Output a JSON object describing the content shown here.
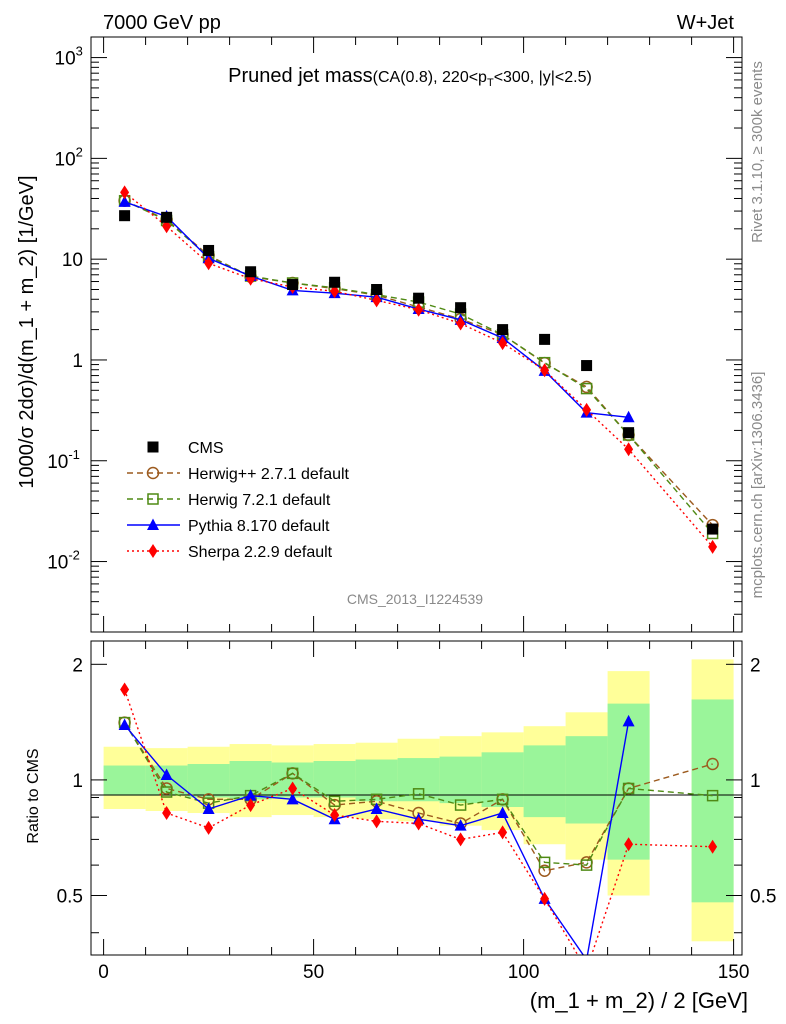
{
  "header": {
    "energy_label": "7000 GeV pp",
    "process_label": "W+Jet",
    "rivet_label": "Rivet 3.1.10, ≥ 300k events",
    "mcplots_label": "mcplots.cern.ch [arXiv:1306.3436]",
    "analysis_id": "CMS_2013_I1224539"
  },
  "chart_data": {
    "type": "scatter",
    "title_main": "Pruned jet mass",
    "title_sub": "(CA(0.8), 220<p_T<300, |y|<2.5)",
    "title_sub_parts": [
      "(CA(0.8), 220<p",
      "T",
      "<300, |y|<2.5)"
    ],
    "xlabel": "(m_1 + m_2) / 2 [GeV]",
    "ylabel": "1000/σ 2dσ)/d(m_1 + m_2) [1/GeV]",
    "ratio_ylabel": "Ratio to CMS",
    "xlim": [
      -3,
      152
    ],
    "ylim": [
      0.002,
      1600
    ],
    "ratio_ylim": [
      0.35,
      2.3
    ],
    "x_ticks": [
      "0",
      "50",
      "100",
      "150"
    ],
    "y_ticks": [
      "10^-2",
      "10^-1",
      "1",
      "10",
      "10^2",
      "10^3"
    ],
    "ratio_y_ticks": [
      "0.5",
      "1",
      "2"
    ],
    "x": [
      5,
      15,
      25,
      35,
      45,
      55,
      65,
      75,
      85,
      95,
      105,
      115,
      125,
      145
    ],
    "series": [
      {
        "name": "CMS",
        "color": "#000000",
        "marker": "square-filled",
        "style": "none",
        "values": [
          27,
          26,
          12.2,
          7.5,
          5.6,
          5.9,
          5.0,
          4.1,
          3.3,
          2.0,
          1.6,
          0.88,
          0.19,
          0.021
        ]
      },
      {
        "name": "Herwig++ 2.7.1 default",
        "color": "#9c5a1e",
        "marker": "circle-open",
        "style": "dashed",
        "values": [
          38,
          24.7,
          10.9,
          6.7,
          5.8,
          5.1,
          4.4,
          3.35,
          2.55,
          1.78,
          0.93,
          0.54,
          0.18,
          0.023
        ]
      },
      {
        "name": "Herwig 7.2.1 default",
        "color": "#4f8a14",
        "marker": "square-open",
        "style": "dashed",
        "values": [
          38,
          24.2,
          10.6,
          6.8,
          5.8,
          5.2,
          4.45,
          3.75,
          2.85,
          1.78,
          0.94,
          0.52,
          0.18,
          0.019
        ]
      },
      {
        "name": "Pythia 8.170 default",
        "color": "#0000ff",
        "marker": "triangle-filled",
        "style": "solid",
        "values": [
          37,
          26.5,
          10.2,
          6.8,
          4.9,
          4.6,
          4.2,
          3.2,
          2.5,
          1.65,
          0.78,
          0.3,
          0.27,
          null
        ]
      },
      {
        "name": "Sherpa 2.2.9 default",
        "color": "#ff0000",
        "marker": "diamond-filled",
        "style": "dotted",
        "values": [
          46,
          21.2,
          9.1,
          6.4,
          5.3,
          4.8,
          3.9,
          3.15,
          2.3,
          1.47,
          0.79,
          0.32,
          0.13,
          0.014
        ]
      }
    ],
    "ratios": {
      "Herwig++ 2.7.1 default": [
        1.41,
        0.95,
        0.89,
        0.89,
        1.04,
        0.86,
        0.88,
        0.82,
        0.77,
        0.89,
        0.58,
        0.61,
        0.95,
        1.1
      ],
      "Herwig 7.2.1 default": [
        1.41,
        0.93,
        0.87,
        0.91,
        1.04,
        0.88,
        0.89,
        0.92,
        0.86,
        0.89,
        0.61,
        0.6,
        0.95,
        0.91
      ],
      "Pythia 8.170 default": [
        1.39,
        1.03,
        0.84,
        0.91,
        0.89,
        0.79,
        0.84,
        0.79,
        0.76,
        0.82,
        0.49,
        0.34,
        1.42,
        null
      ],
      "Sherpa 2.2.9 default": [
        1.72,
        0.82,
        0.75,
        0.86,
        0.95,
        0.81,
        0.78,
        0.77,
        0.7,
        0.73,
        0.49,
        0.32,
        0.68,
        0.67
      ]
    },
    "band_stat": [
      [
        0,
        10,
        0.91,
        1.09
      ],
      [
        10,
        20,
        0.91,
        1.09
      ],
      [
        20,
        30,
        0.9,
        1.1
      ],
      [
        30,
        40,
        0.89,
        1.12
      ],
      [
        40,
        50,
        0.9,
        1.11
      ],
      [
        50,
        60,
        0.9,
        1.12
      ],
      [
        60,
        70,
        0.88,
        1.13
      ],
      [
        70,
        80,
        0.88,
        1.14
      ],
      [
        80,
        90,
        0.87,
        1.15
      ],
      [
        90,
        100,
        0.85,
        1.18
      ],
      [
        100,
        110,
        0.8,
        1.23
      ],
      [
        110,
        120,
        0.77,
        1.3
      ],
      [
        120,
        130,
        0.62,
        1.58
      ],
      [
        140,
        150,
        0.48,
        1.62
      ]
    ],
    "band_syst": [
      [
        0,
        10,
        0.84,
        1.22
      ],
      [
        10,
        20,
        0.83,
        1.21
      ],
      [
        20,
        30,
        0.82,
        1.22
      ],
      [
        30,
        40,
        0.8,
        1.24
      ],
      [
        40,
        50,
        0.81,
        1.23
      ],
      [
        50,
        60,
        0.8,
        1.24
      ],
      [
        60,
        70,
        0.79,
        1.25
      ],
      [
        70,
        80,
        0.78,
        1.28
      ],
      [
        80,
        90,
        0.76,
        1.3
      ],
      [
        90,
        100,
        0.74,
        1.33
      ],
      [
        100,
        110,
        0.68,
        1.38
      ],
      [
        110,
        120,
        0.62,
        1.5
      ],
      [
        120,
        130,
        0.5,
        1.92
      ],
      [
        140,
        150,
        0.38,
        2.06
      ]
    ],
    "band_colors": {
      "stat": "#9af59a",
      "syst": "#ffff99"
    }
  }
}
